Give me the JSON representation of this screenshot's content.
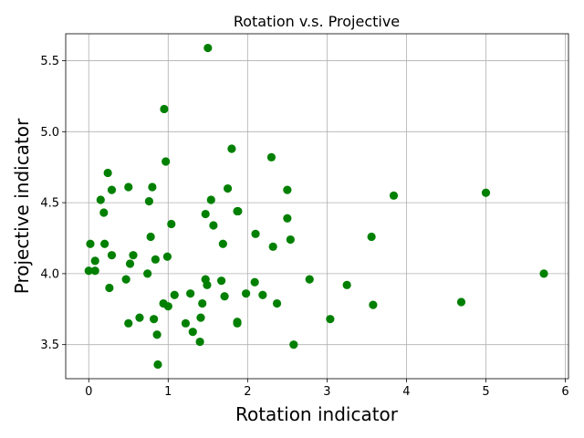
{
  "chart_data": {
    "type": "scatter",
    "title": "Rotation v.s. Projective",
    "xlabel": "Rotation indicator",
    "ylabel": "Projective indicator",
    "xlim": [
      -0.29,
      6.04
    ],
    "ylim": [
      3.26,
      5.69
    ],
    "xticks": [
      0,
      1,
      2,
      3,
      4,
      5,
      6
    ],
    "yticks": [
      3.5,
      4.0,
      4.5,
      5.0,
      5.5
    ],
    "xtick_labels": [
      "0",
      "1",
      "2",
      "3",
      "4",
      "5",
      "6"
    ],
    "ytick_labels": [
      "3.5",
      "4.0",
      "4.5",
      "5.0",
      "5.5"
    ],
    "grid": true,
    "marker_color": "#008000",
    "points": [
      {
        "x": 0.02,
        "y": 4.21
      },
      {
        "x": 0.0,
        "y": 4.02
      },
      {
        "x": 0.08,
        "y": 4.02
      },
      {
        "x": 0.08,
        "y": 4.09
      },
      {
        "x": 0.15,
        "y": 4.52
      },
      {
        "x": 0.19,
        "y": 4.43
      },
      {
        "x": 0.2,
        "y": 4.21
      },
      {
        "x": 0.24,
        "y": 4.71
      },
      {
        "x": 0.29,
        "y": 4.59
      },
      {
        "x": 0.29,
        "y": 4.13
      },
      {
        "x": 0.26,
        "y": 3.9
      },
      {
        "x": 0.47,
        "y": 3.96
      },
      {
        "x": 0.5,
        "y": 4.61
      },
      {
        "x": 0.52,
        "y": 4.07
      },
      {
        "x": 0.56,
        "y": 4.13
      },
      {
        "x": 0.5,
        "y": 3.65
      },
      {
        "x": 0.64,
        "y": 3.69
      },
      {
        "x": 0.74,
        "y": 4.0
      },
      {
        "x": 0.76,
        "y": 4.51
      },
      {
        "x": 0.78,
        "y": 4.26
      },
      {
        "x": 0.8,
        "y": 4.61
      },
      {
        "x": 0.84,
        "y": 4.1
      },
      {
        "x": 0.82,
        "y": 3.68
      },
      {
        "x": 0.86,
        "y": 3.57
      },
      {
        "x": 0.87,
        "y": 3.36
      },
      {
        "x": 0.95,
        "y": 5.16
      },
      {
        "x": 0.97,
        "y": 4.79
      },
      {
        "x": 0.94,
        "y": 3.79
      },
      {
        "x": 1.0,
        "y": 3.77
      },
      {
        "x": 0.99,
        "y": 4.12
      },
      {
        "x": 1.04,
        "y": 4.35
      },
      {
        "x": 1.08,
        "y": 3.85
      },
      {
        "x": 1.22,
        "y": 3.65
      },
      {
        "x": 1.28,
        "y": 3.86
      },
      {
        "x": 1.31,
        "y": 3.59
      },
      {
        "x": 1.4,
        "y": 3.52
      },
      {
        "x": 1.41,
        "y": 3.69
      },
      {
        "x": 1.43,
        "y": 3.79
      },
      {
        "x": 1.47,
        "y": 3.96
      },
      {
        "x": 1.49,
        "y": 3.92
      },
      {
        "x": 1.47,
        "y": 4.42
      },
      {
        "x": 1.5,
        "y": 5.59
      },
      {
        "x": 1.54,
        "y": 4.52
      },
      {
        "x": 1.57,
        "y": 4.34
      },
      {
        "x": 1.67,
        "y": 3.95
      },
      {
        "x": 1.69,
        "y": 4.21
      },
      {
        "x": 1.71,
        "y": 3.84
      },
      {
        "x": 1.75,
        "y": 4.6
      },
      {
        "x": 1.8,
        "y": 4.88
      },
      {
        "x": 1.87,
        "y": 4.44
      },
      {
        "x": 1.88,
        "y": 4.44
      },
      {
        "x": 1.87,
        "y": 3.66
      },
      {
        "x": 1.87,
        "y": 3.65
      },
      {
        "x": 1.98,
        "y": 3.86
      },
      {
        "x": 2.09,
        "y": 3.94
      },
      {
        "x": 2.1,
        "y": 4.28
      },
      {
        "x": 2.19,
        "y": 3.85
      },
      {
        "x": 2.3,
        "y": 4.82
      },
      {
        "x": 2.32,
        "y": 4.19
      },
      {
        "x": 2.37,
        "y": 3.79
      },
      {
        "x": 2.5,
        "y": 4.59
      },
      {
        "x": 2.5,
        "y": 4.39
      },
      {
        "x": 2.54,
        "y": 4.24
      },
      {
        "x": 2.58,
        "y": 3.5
      },
      {
        "x": 2.78,
        "y": 3.96
      },
      {
        "x": 3.04,
        "y": 3.68
      },
      {
        "x": 3.25,
        "y": 3.92
      },
      {
        "x": 3.56,
        "y": 4.26
      },
      {
        "x": 3.58,
        "y": 3.78
      },
      {
        "x": 3.84,
        "y": 4.55
      },
      {
        "x": 4.69,
        "y": 3.8
      },
      {
        "x": 5.0,
        "y": 4.57
      },
      {
        "x": 5.73,
        "y": 4.0
      }
    ]
  }
}
